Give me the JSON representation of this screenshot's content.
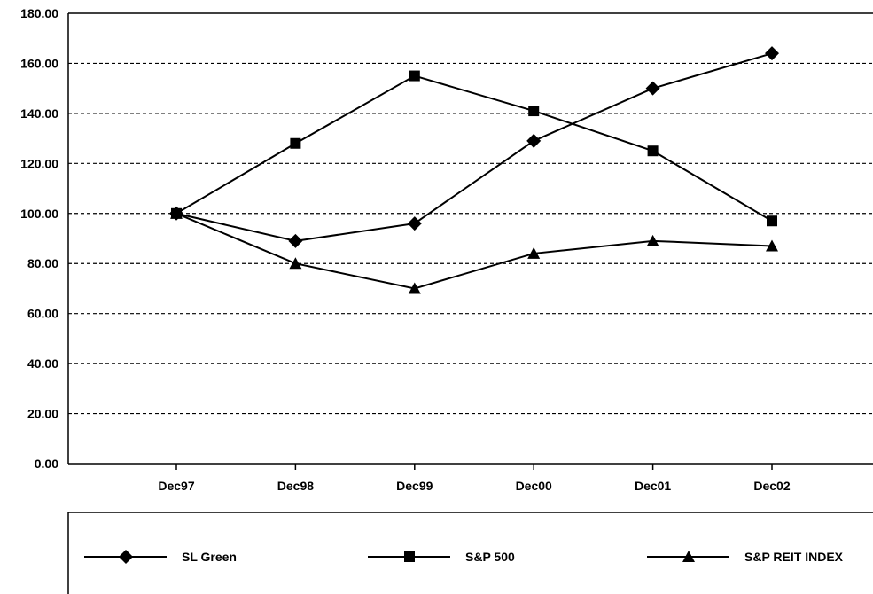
{
  "chart_data": {
    "type": "line",
    "title": "",
    "xlabel": "",
    "ylabel": "",
    "categories": [
      "Dec97",
      "Dec98",
      "Dec99",
      "Dec00",
      "Dec01",
      "Dec02"
    ],
    "ylim": [
      0,
      180
    ],
    "y_ticks": [
      "0.00",
      "20.00",
      "40.00",
      "60.00",
      "80.00",
      "100.00",
      "120.00",
      "140.00",
      "160.00",
      "180.00"
    ],
    "grid": "horizontal dashed",
    "legend_position": "bottom",
    "series": [
      {
        "name": "SL Green",
        "marker": "diamond",
        "values": [
          100,
          89,
          96,
          129,
          150,
          164
        ]
      },
      {
        "name": "S&P 500",
        "marker": "square",
        "values": [
          100,
          128,
          155,
          141,
          125,
          97
        ]
      },
      {
        "name": "S&P REIT INDEX",
        "marker": "triangle",
        "values": [
          100,
          80,
          70,
          84,
          89,
          87
        ]
      }
    ],
    "line_color": "#000000"
  }
}
